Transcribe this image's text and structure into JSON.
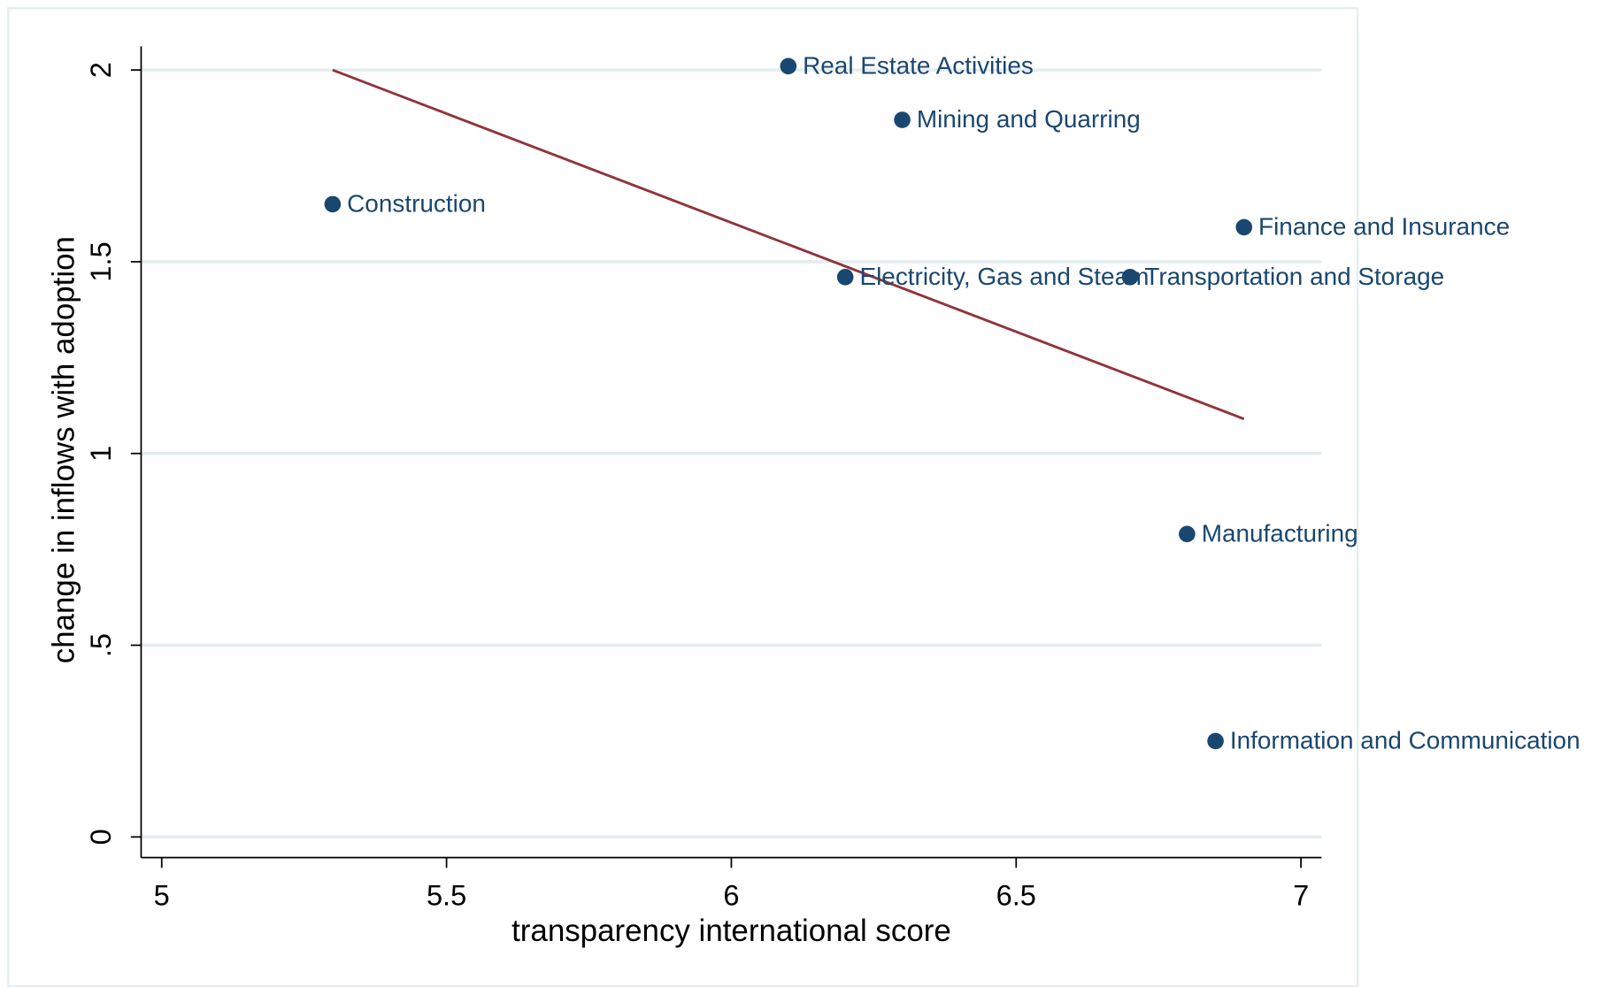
{
  "chart_data": {
    "type": "scatter",
    "xlabel": "transparency international score",
    "ylabel": "change in inflows with adoption",
    "xlim": [
      5,
      7
    ],
    "ylim": [
      0,
      2
    ],
    "xticks": [
      5,
      5.5,
      6,
      6.5,
      7
    ],
    "yticks": [
      0,
      {
        "value": 0.5,
        "label": ".5"
      },
      1,
      1.5,
      2
    ],
    "grid": true,
    "labels": [
      "Real Estate Activities",
      "Mining and Quarring",
      "Construction",
      "Finance and Insurance",
      "Electricity, Gas and Steam",
      "Transportation and Storage",
      "Manufacturing",
      "Information and Communication"
    ],
    "x": [
      6.1,
      6.3,
      5.3,
      6.9,
      6.2,
      6.7,
      6.8,
      6.85
    ],
    "values": [
      2.01,
      1.87,
      1.65,
      1.59,
      1.46,
      1.46,
      0.79,
      0.25
    ],
    "color": "#1a476f",
    "fit": {
      "type": "line",
      "x": [
        5.3,
        6.9
      ],
      "values": [
        2.0,
        1.09
      ],
      "color": "#90353b"
    }
  }
}
